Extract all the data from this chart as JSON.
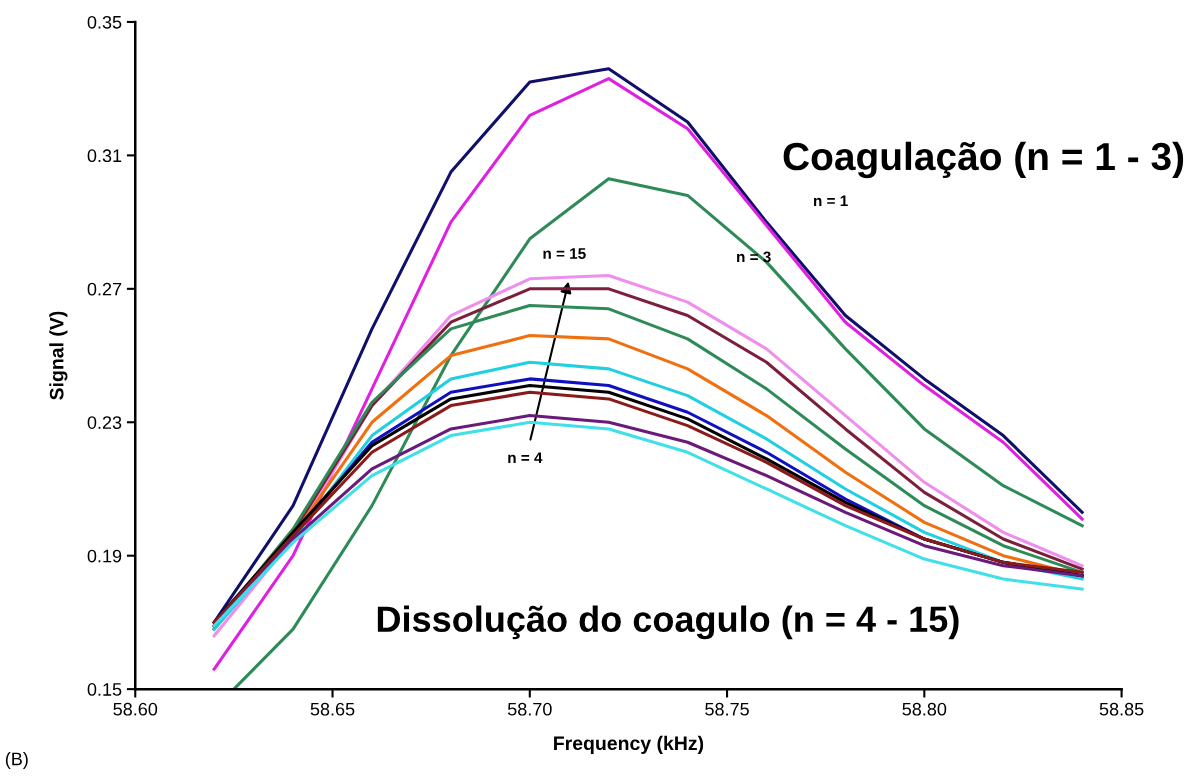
{
  "chart_data": {
    "type": "line",
    "xlabel": "Frequency (kHz)",
    "ylabel": "Signal (V)",
    "x": [
      58.62,
      58.64,
      58.66,
      58.68,
      58.7,
      58.72,
      58.74,
      58.76,
      58.78,
      58.8,
      58.82,
      58.84
    ],
    "xlim": [
      58.6,
      58.85
    ],
    "xticks": [
      {
        "value": 58.6,
        "label": "58.60"
      },
      {
        "value": 58.65,
        "label": "58.65"
      },
      {
        "value": 58.7,
        "label": "58.70"
      },
      {
        "value": 58.75,
        "label": "58.75"
      },
      {
        "value": 58.8,
        "label": "58.80"
      },
      {
        "value": 58.85,
        "label": "58.85"
      }
    ],
    "ylim": [
      0.15,
      0.35
    ],
    "yticks": [
      0.15,
      0.19,
      0.23,
      0.27,
      0.31,
      0.35
    ],
    "grid": false,
    "legend": false,
    "marker": "none",
    "line_style": "solid",
    "annotations": [
      "Coagulação (n = 1 - 3)",
      "n = 1",
      "n = 3",
      "n = 15",
      "n = 4",
      "Dissolução do coagulo (n = 4 - 15)",
      "(B)"
    ],
    "series": [
      {
        "color": "#10106a",
        "values": [
          0.17,
          0.205,
          0.258,
          0.305,
          0.332,
          0.336,
          0.32,
          0.29,
          0.262,
          0.243,
          0.226,
          0.203
        ]
      },
      {
        "color": "#e020e0",
        "values": [
          0.156,
          0.19,
          0.24,
          0.29,
          0.322,
          0.333,
          0.318,
          0.289,
          0.26,
          0.241,
          0.224,
          0.201
        ]
      },
      {
        "color": "#2e8b57",
        "x": [
          58.625,
          58.64,
          58.66,
          58.68,
          58.7,
          58.72,
          58.74,
          58.76,
          58.78,
          58.8,
          58.82,
          58.84
        ],
        "values": [
          0.15,
          0.168,
          0.205,
          0.25,
          0.285,
          0.303,
          0.298,
          0.278,
          0.252,
          0.228,
          0.211,
          0.199
        ]
      },
      {
        "color": "#ee8fee",
        "values": [
          0.166,
          0.195,
          0.235,
          0.262,
          0.273,
          0.274,
          0.266,
          0.252,
          0.232,
          0.212,
          0.197,
          0.187
        ]
      },
      {
        "color": "#7b1f3a",
        "values": [
          0.168,
          0.197,
          0.235,
          0.26,
          0.27,
          0.27,
          0.262,
          0.248,
          0.228,
          0.209,
          0.195,
          0.186
        ]
      },
      {
        "color": "#2e8b57",
        "values": [
          0.169,
          0.198,
          0.236,
          0.258,
          0.265,
          0.264,
          0.255,
          0.24,
          0.222,
          0.205,
          0.193,
          0.185
        ]
      },
      {
        "color": "#f07010",
        "values": [
          0.168,
          0.196,
          0.23,
          0.25,
          0.256,
          0.255,
          0.246,
          0.232,
          0.215,
          0.2,
          0.19,
          0.184
        ]
      },
      {
        "color": "#20d0e0",
        "values": [
          0.168,
          0.195,
          0.226,
          0.243,
          0.248,
          0.246,
          0.238,
          0.225,
          0.21,
          0.197,
          0.188,
          0.183
        ]
      },
      {
        "color": "#1010c0",
        "values": [
          0.169,
          0.196,
          0.224,
          0.239,
          0.243,
          0.241,
          0.233,
          0.221,
          0.207,
          0.195,
          0.188,
          0.184
        ]
      },
      {
        "color": "#000000",
        "values": [
          0.17,
          0.197,
          0.223,
          0.237,
          0.241,
          0.239,
          0.231,
          0.219,
          0.206,
          0.195,
          0.188,
          0.184
        ]
      },
      {
        "color": "#8b1a1a",
        "values": [
          0.17,
          0.196,
          0.221,
          0.235,
          0.239,
          0.237,
          0.229,
          0.218,
          0.205,
          0.195,
          0.188,
          0.185
        ]
      },
      {
        "color": "#6a1b7a",
        "values": [
          0.169,
          0.195,
          0.216,
          0.228,
          0.232,
          0.23,
          0.224,
          0.214,
          0.203,
          0.193,
          0.187,
          0.184
        ]
      },
      {
        "color": "#40e0e8",
        "values": [
          0.169,
          0.194,
          0.214,
          0.226,
          0.23,
          0.228,
          0.221,
          0.21,
          0.199,
          0.189,
          0.183,
          0.18
        ]
      }
    ]
  }
}
